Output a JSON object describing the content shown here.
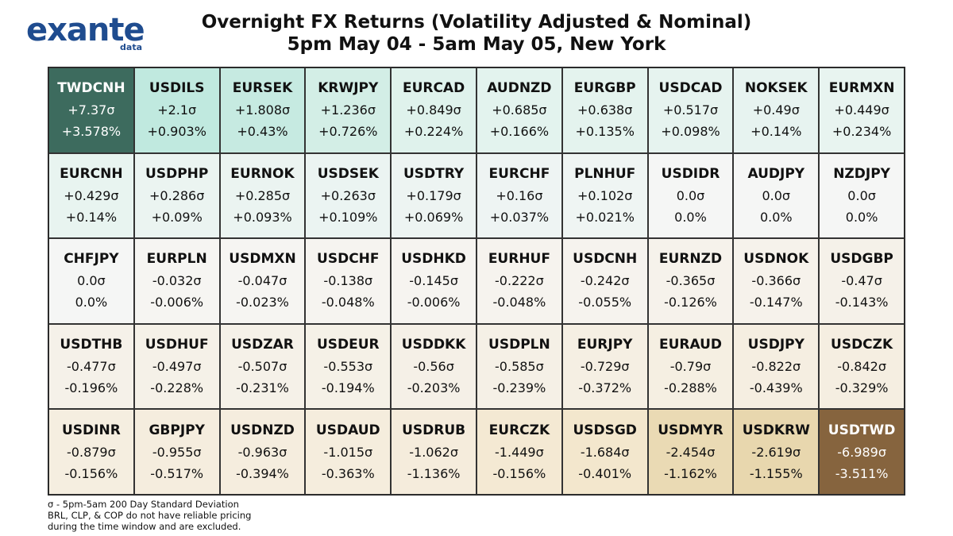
{
  "logo": {
    "main": "exante",
    "sub": "data"
  },
  "title": "Overnight FX Returns (Volatility Adjusted & Nominal)",
  "subtitle": "5pm May 04 - 5am May 05, New York",
  "footnote": {
    "line1": "σ - 5pm-5am 200 Day Standard Deviation",
    "line2": "BRL, CLP, & COP do not have reliable pricing",
    "line3": "during the time window and are excluded."
  },
  "colors": {
    "top_highlight": "#3d6b5e",
    "bottom_highlight": "#86643e",
    "text_dark": "#111111",
    "text_light": "#ffffff"
  },
  "chart_data": {
    "type": "table",
    "title": "Overnight FX Returns (Volatility Adjusted & Nominal)",
    "subtitle": "5pm May 04 - 5am May 05, New York",
    "columns": 10,
    "cells": [
      {
        "pair": "TWDCNH",
        "vol": "+7.37σ",
        "nom": "+3.578%",
        "v": 7.37,
        "n": 3.578
      },
      {
        "pair": "USDILS",
        "vol": "+2.1σ",
        "nom": "+0.903%",
        "v": 2.1,
        "n": 0.903
      },
      {
        "pair": "EURSEK",
        "vol": "+1.808σ",
        "nom": "+0.43%",
        "v": 1.808,
        "n": 0.43
      },
      {
        "pair": "KRWJPY",
        "vol": "+1.236σ",
        "nom": "+0.726%",
        "v": 1.236,
        "n": 0.726
      },
      {
        "pair": "EURCAD",
        "vol": "+0.849σ",
        "nom": "+0.224%",
        "v": 0.849,
        "n": 0.224
      },
      {
        "pair": "AUDNZD",
        "vol": "+0.685σ",
        "nom": "+0.166%",
        "v": 0.685,
        "n": 0.166
      },
      {
        "pair": "EURGBP",
        "vol": "+0.638σ",
        "nom": "+0.135%",
        "v": 0.638,
        "n": 0.135
      },
      {
        "pair": "USDCAD",
        "vol": "+0.517σ",
        "nom": "+0.098%",
        "v": 0.517,
        "n": 0.098
      },
      {
        "pair": "NOKSEK",
        "vol": "+0.49σ",
        "nom": "+0.14%",
        "v": 0.49,
        "n": 0.14
      },
      {
        "pair": "EURMXN",
        "vol": "+0.449σ",
        "nom": "+0.234%",
        "v": 0.449,
        "n": 0.234
      },
      {
        "pair": "EURCNH",
        "vol": "+0.429σ",
        "nom": "+0.14%",
        "v": 0.429,
        "n": 0.14
      },
      {
        "pair": "USDPHP",
        "vol": "+0.286σ",
        "nom": "+0.09%",
        "v": 0.286,
        "n": 0.09
      },
      {
        "pair": "EURNOK",
        "vol": "+0.285σ",
        "nom": "+0.093%",
        "v": 0.285,
        "n": 0.093
      },
      {
        "pair": "USDSEK",
        "vol": "+0.263σ",
        "nom": "+0.109%",
        "v": 0.263,
        "n": 0.109
      },
      {
        "pair": "USDTRY",
        "vol": "+0.179σ",
        "nom": "+0.069%",
        "v": 0.179,
        "n": 0.069
      },
      {
        "pair": "EURCHF",
        "vol": "+0.16σ",
        "nom": "+0.037%",
        "v": 0.16,
        "n": 0.037
      },
      {
        "pair": "PLNHUF",
        "vol": "+0.102σ",
        "nom": "+0.021%",
        "v": 0.102,
        "n": 0.021
      },
      {
        "pair": "USDIDR",
        "vol": "0.0σ",
        "nom": "0.0%",
        "v": 0.0,
        "n": 0.0
      },
      {
        "pair": "AUDJPY",
        "vol": "0.0σ",
        "nom": "0.0%",
        "v": 0.0,
        "n": 0.0
      },
      {
        "pair": "NZDJPY",
        "vol": "0.0σ",
        "nom": "0.0%",
        "v": 0.0,
        "n": 0.0
      },
      {
        "pair": "CHFJPY",
        "vol": "0.0σ",
        "nom": "0.0%",
        "v": 0.0,
        "n": 0.0
      },
      {
        "pair": "EURPLN",
        "vol": "-0.032σ",
        "nom": "-0.006%",
        "v": -0.032,
        "n": -0.006
      },
      {
        "pair": "USDMXN",
        "vol": "-0.047σ",
        "nom": "-0.023%",
        "v": -0.047,
        "n": -0.023
      },
      {
        "pair": "USDCHF",
        "vol": "-0.138σ",
        "nom": "-0.048%",
        "v": -0.138,
        "n": -0.048
      },
      {
        "pair": "USDHKD",
        "vol": "-0.145σ",
        "nom": "-0.006%",
        "v": -0.145,
        "n": -0.006
      },
      {
        "pair": "EURHUF",
        "vol": "-0.222σ",
        "nom": "-0.048%",
        "v": -0.222,
        "n": -0.048
      },
      {
        "pair": "USDCNH",
        "vol": "-0.242σ",
        "nom": "-0.055%",
        "v": -0.242,
        "n": -0.055
      },
      {
        "pair": "EURNZD",
        "vol": "-0.365σ",
        "nom": "-0.126%",
        "v": -0.365,
        "n": -0.126
      },
      {
        "pair": "USDNOK",
        "vol": "-0.366σ",
        "nom": "-0.147%",
        "v": -0.366,
        "n": -0.147
      },
      {
        "pair": "USDGBP",
        "vol": "-0.47σ",
        "nom": "-0.143%",
        "v": -0.47,
        "n": -0.143
      },
      {
        "pair": "USDTHB",
        "vol": "-0.477σ",
        "nom": "-0.196%",
        "v": -0.477,
        "n": -0.196
      },
      {
        "pair": "USDHUF",
        "vol": "-0.497σ",
        "nom": "-0.228%",
        "v": -0.497,
        "n": -0.228
      },
      {
        "pair": "USDZAR",
        "vol": "-0.507σ",
        "nom": "-0.231%",
        "v": -0.507,
        "n": -0.231
      },
      {
        "pair": "USDEUR",
        "vol": "-0.553σ",
        "nom": "-0.194%",
        "v": -0.553,
        "n": -0.194
      },
      {
        "pair": "USDDKK",
        "vol": "-0.56σ",
        "nom": "-0.203%",
        "v": -0.56,
        "n": -0.203
      },
      {
        "pair": "USDPLN",
        "vol": "-0.585σ",
        "nom": "-0.239%",
        "v": -0.585,
        "n": -0.239
      },
      {
        "pair": "EURJPY",
        "vol": "-0.729σ",
        "nom": "-0.372%",
        "v": -0.729,
        "n": -0.372
      },
      {
        "pair": "EURAUD",
        "vol": "-0.79σ",
        "nom": "-0.288%",
        "v": -0.79,
        "n": -0.288
      },
      {
        "pair": "USDJPY",
        "vol": "-0.822σ",
        "nom": "-0.439%",
        "v": -0.822,
        "n": -0.439
      },
      {
        "pair": "USDCZK",
        "vol": "-0.842σ",
        "nom": "-0.329%",
        "v": -0.842,
        "n": -0.329
      },
      {
        "pair": "USDINR",
        "vol": "-0.879σ",
        "nom": "-0.156%",
        "v": -0.879,
        "n": -0.156
      },
      {
        "pair": "GBPJPY",
        "vol": "-0.955σ",
        "nom": "-0.517%",
        "v": -0.955,
        "n": -0.517
      },
      {
        "pair": "USDNZD",
        "vol": "-0.963σ",
        "nom": "-0.394%",
        "v": -0.963,
        "n": -0.394
      },
      {
        "pair": "USDAUD",
        "vol": "-1.015σ",
        "nom": "-0.363%",
        "v": -1.015,
        "n": -0.363
      },
      {
        "pair": "USDRUB",
        "vol": "-1.062σ",
        "nom": "-1.136%",
        "v": -1.062,
        "n": -1.136
      },
      {
        "pair": "EURCZK",
        "vol": "-1.449σ",
        "nom": "-0.156%",
        "v": -1.449,
        "n": -0.156
      },
      {
        "pair": "USDSGD",
        "vol": "-1.684σ",
        "nom": "-0.401%",
        "v": -1.684,
        "n": -0.401
      },
      {
        "pair": "USDMYR",
        "vol": "-2.454σ",
        "nom": "-1.162%",
        "v": -2.454,
        "n": -1.162
      },
      {
        "pair": "USDKRW",
        "vol": "-2.619σ",
        "nom": "-1.155%",
        "v": -2.619,
        "n": -1.155
      },
      {
        "pair": "USDTWD",
        "vol": "-6.989σ",
        "nom": "-3.511%",
        "v": -6.989,
        "n": -3.511
      }
    ]
  }
}
